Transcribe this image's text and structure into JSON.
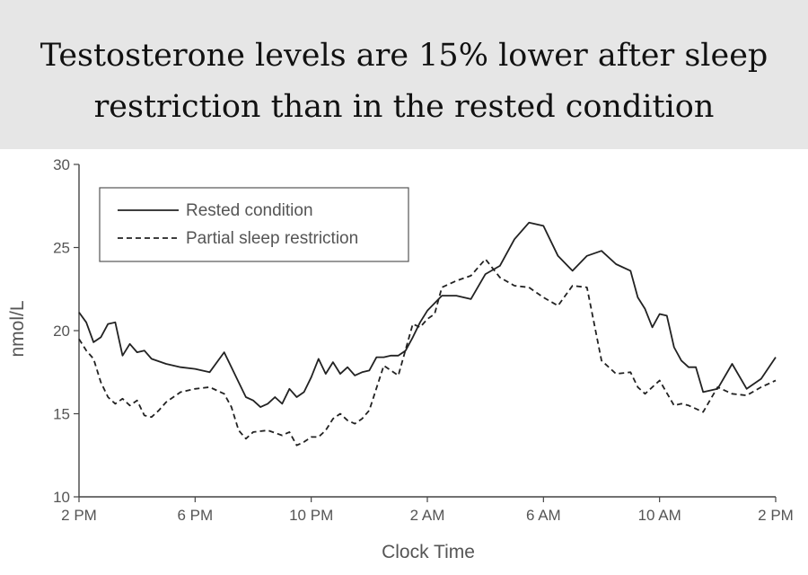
{
  "header": {
    "title_line1": "Testosterone levels are 15% lower after sleep",
    "title_line2": "restriction than in the rested condition"
  },
  "chart_data": {
    "type": "line",
    "title": "Testosterone levels are 15% lower after sleep restriction than in the rested condition",
    "xlabel": "Clock Time",
    "ylabel": "nmol/L",
    "x_unit": "hours since 2 PM",
    "xlim": [
      0,
      24
    ],
    "ylim": [
      10,
      30
    ],
    "x_ticks": [
      0,
      4,
      8,
      12,
      16,
      20,
      24
    ],
    "x_tick_labels": [
      "2 PM",
      "6 PM",
      "10 PM",
      "2 AM",
      "6 AM",
      "10 AM",
      "2 PM"
    ],
    "y_ticks": [
      10,
      15,
      20,
      25,
      30
    ],
    "y_tick_labels": [
      "10",
      "15",
      "20",
      "25",
      "30"
    ],
    "grid": false,
    "legend_position": "top-left",
    "series": [
      {
        "name": "Rested condition",
        "style": "solid",
        "color": "#222222",
        "x": [
          0,
          0.25,
          0.5,
          0.75,
          1.0,
          1.25,
          1.5,
          1.75,
          2.0,
          2.25,
          2.5,
          3.0,
          3.5,
          4.0,
          4.5,
          5.0,
          5.5,
          5.75,
          6.0,
          6.25,
          6.5,
          6.75,
          7.0,
          7.25,
          7.5,
          7.75,
          8.0,
          8.25,
          8.5,
          8.75,
          9.0,
          9.25,
          9.5,
          9.75,
          10.0,
          10.25,
          10.5,
          10.75,
          11.0,
          11.25,
          11.5,
          11.75,
          12.0,
          12.5,
          13.0,
          13.5,
          14.0,
          14.5,
          15.0,
          15.5,
          16.0,
          16.5,
          17.0,
          17.5,
          18.0,
          18.5,
          19.0,
          19.25,
          19.5,
          19.75,
          20.0,
          20.25,
          20.5,
          20.75,
          21.0,
          21.25,
          21.5,
          22.0,
          22.5,
          23.0,
          23.5,
          24.0
        ],
        "values": [
          21.1,
          20.5,
          19.3,
          19.6,
          20.4,
          20.5,
          18.5,
          19.2,
          18.7,
          18.8,
          18.3,
          18.0,
          17.8,
          17.7,
          17.5,
          18.7,
          16.9,
          16.0,
          15.8,
          15.4,
          15.6,
          16.0,
          15.6,
          16.5,
          16.0,
          16.3,
          17.2,
          18.3,
          17.4,
          18.1,
          17.4,
          17.8,
          17.3,
          17.5,
          17.6,
          18.4,
          18.4,
          18.5,
          18.5,
          18.8,
          19.6,
          20.5,
          21.2,
          22.1,
          22.1,
          21.9,
          23.4,
          23.9,
          25.5,
          26.5,
          26.3,
          24.5,
          23.6,
          24.5,
          24.8,
          24.0,
          23.6,
          22.0,
          21.3,
          20.2,
          21.0,
          20.9,
          19.0,
          18.2,
          17.8,
          17.8,
          16.3,
          16.5,
          18.0,
          16.5,
          17.1,
          18.4
        ]
      },
      {
        "name": "Partial sleep restriction",
        "style": "dashed",
        "color": "#222222",
        "x": [
          0,
          0.25,
          0.5,
          0.75,
          1.0,
          1.25,
          1.5,
          1.75,
          2.0,
          2.25,
          2.5,
          2.75,
          3.0,
          3.5,
          4.0,
          4.5,
          5.0,
          5.25,
          5.5,
          5.75,
          6.0,
          6.5,
          7.0,
          7.25,
          7.5,
          7.75,
          8.0,
          8.25,
          8.5,
          8.75,
          9.0,
          9.25,
          9.5,
          9.75,
          10.0,
          10.5,
          11.0,
          11.5,
          11.75,
          12.0,
          12.25,
          12.5,
          13.0,
          13.5,
          14.0,
          14.5,
          15.0,
          15.5,
          16.0,
          16.5,
          17.0,
          17.5,
          18.0,
          18.5,
          19.0,
          19.25,
          19.5,
          20.0,
          20.5,
          20.75,
          21.0,
          21.25,
          21.5,
          22.0,
          22.5,
          23.0,
          23.5,
          24.0
        ],
        "values": [
          19.5,
          18.8,
          18.3,
          16.9,
          16.0,
          15.6,
          15.9,
          15.5,
          15.8,
          14.9,
          14.8,
          15.2,
          15.7,
          16.3,
          16.5,
          16.6,
          16.2,
          15.4,
          14.0,
          13.5,
          13.9,
          14.0,
          13.7,
          13.9,
          13.1,
          13.3,
          13.6,
          13.6,
          14.0,
          14.7,
          15.0,
          14.6,
          14.4,
          14.7,
          15.2,
          17.9,
          17.3,
          20.4,
          20.2,
          20.7,
          21.0,
          22.6,
          23.0,
          23.3,
          24.3,
          23.2,
          22.7,
          22.6,
          22.0,
          21.5,
          22.7,
          22.6,
          18.2,
          17.4,
          17.5,
          16.6,
          16.2,
          17.0,
          15.5,
          15.6,
          15.5,
          15.3,
          15.1,
          16.6,
          16.2,
          16.1,
          16.6,
          17.0
        ]
      }
    ]
  }
}
